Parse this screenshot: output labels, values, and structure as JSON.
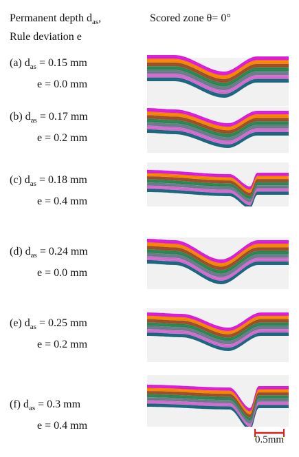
{
  "header": {
    "left_line1": "Permanent depth d",
    "left_line1_sub": "as",
    "left_line1_tail": ",",
    "left_line2": "Rule deviation e",
    "right": "Scored zone θ= 0°"
  },
  "rows": [
    {
      "tag": "(a) d",
      "sub": "as",
      "das": " = 0.15 mm",
      "e": "e = 0.0 mm"
    },
    {
      "tag": "(b) d",
      "sub": "as",
      "das": " = 0.17 mm",
      "e": "e = 0.2 mm"
    },
    {
      "tag": "(c) d",
      "sub": "as",
      "das": " = 0.18 mm",
      "e": "e = 0.4 mm"
    },
    {
      "tag": "(d) d",
      "sub": "as",
      "das": " = 0.24 mm",
      "e": "e = 0.0 mm"
    },
    {
      "tag": "(e) d",
      "sub": "as",
      "das": " = 0.25 mm",
      "e": "e = 0.2 mm"
    },
    {
      "tag": "(f) d",
      "sub": "as",
      "das": " = 0.3 mm",
      "e": "e = 0.4 mm"
    }
  ],
  "scale_bar": {
    "label": "0.5mm",
    "color": "#d62020"
  },
  "layer_colors": [
    "#e020e0",
    "#ff8c00",
    "#a0522d",
    "#2e8b57",
    "#708090",
    "#da70d6",
    "#1e6b82"
  ]
}
